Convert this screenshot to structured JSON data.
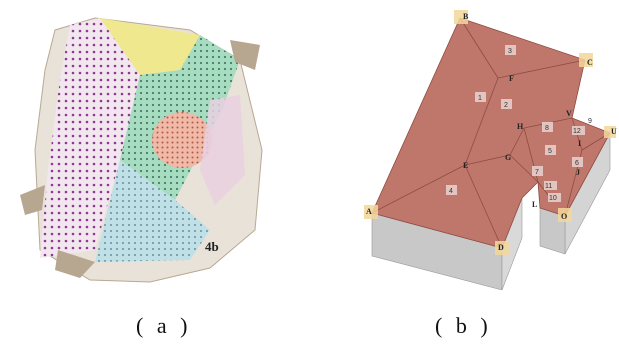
{
  "captions": {
    "a": "( a )",
    "b": "( b )"
  },
  "panel_a": {
    "label": "4b"
  },
  "panel_b": {
    "point_labels": [
      "A",
      "B",
      "C",
      "D",
      "E",
      "F",
      "G",
      "H",
      "I",
      "J",
      "L",
      "O",
      "U",
      "V"
    ],
    "face_labels": [
      "1",
      "2",
      "3",
      "4",
      "5",
      "6",
      "7",
      "8",
      "9",
      "10",
      "11",
      "12"
    ]
  },
  "colors": {
    "roof": "#c0776b",
    "wall": "#c9c9c9",
    "corner_marker": "#f3d79a",
    "point_cloud_yellow": "#efe88a",
    "point_cloud_green": "#9ed8b8",
    "point_cloud_magenta": "#b24aa8"
  }
}
